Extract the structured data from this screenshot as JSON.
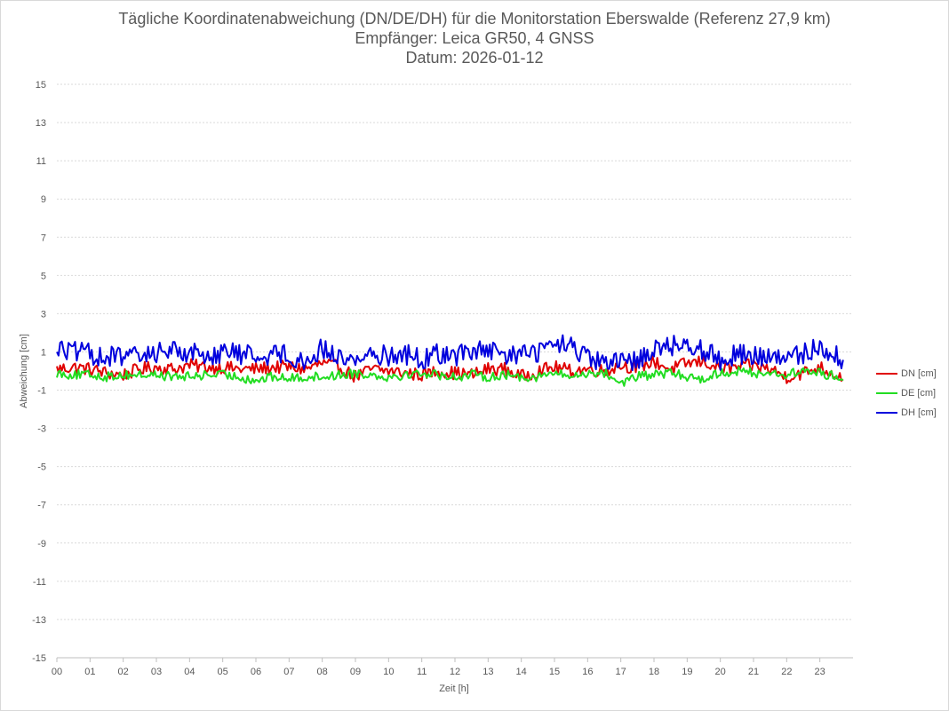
{
  "chart_data": {
    "type": "line",
    "title": "Tägliche Koordinatenabweichung (DN/DE/DH) für die Monitorstation Eberswalde (Referenz 27,9 km)",
    "subtitle_1": "Empfänger: Leica GR50, 4 GNSS",
    "subtitle_2": "Datum: 2026-01-12",
    "xlabel": "Zeit [h]",
    "ylabel": "Abweichung [cm]",
    "xlim": [
      0,
      24
    ],
    "ylim": [
      -15,
      15
    ],
    "x_ticks": [
      "00",
      "01",
      "02",
      "03",
      "04",
      "05",
      "06",
      "07",
      "08",
      "09",
      "10",
      "11",
      "12",
      "13",
      "14",
      "15",
      "16",
      "17",
      "18",
      "19",
      "20",
      "21",
      "22",
      "23"
    ],
    "y_ticks": [
      "15",
      "13",
      "11",
      "9",
      "7",
      "5",
      "3",
      "1",
      "-1",
      "-3",
      "-5",
      "-7",
      "-9",
      "-11",
      "-13",
      "-15"
    ],
    "grid": true,
    "legend_position": "right",
    "x_hours": [
      0,
      0.5,
      1,
      1.5,
      2,
      2.5,
      3,
      3.5,
      4,
      4.5,
      5,
      5.5,
      6,
      6.5,
      7,
      7.5,
      8,
      8.5,
      9,
      9.5,
      10,
      10.5,
      11,
      11.5,
      12,
      12.5,
      13,
      13.5,
      14,
      14.5,
      15,
      15.5,
      16,
      16.5,
      17,
      17.5,
      18,
      18.5,
      19,
      19.5,
      20,
      20.5,
      21,
      21.5,
      22,
      22.5,
      23,
      23.5
    ],
    "series": [
      {
        "name": "DN [cm]",
        "color": "#e00000",
        "values": [
          0.1,
          0.2,
          0.1,
          -0.1,
          -0.2,
          0.1,
          0.2,
          0.1,
          0.3,
          0.2,
          0.2,
          0.1,
          0.1,
          0.2,
          0.2,
          0.1,
          0.4,
          0.2,
          -0.3,
          0.1,
          0.0,
          -0.1,
          -0.2,
          0.0,
          -0.1,
          -0.2,
          0.1,
          0.1,
          -0.3,
          0.0,
          0.2,
          0.0,
          0.1,
          0.0,
          0.3,
          0.2,
          0.5,
          0.1,
          0.4,
          0.5,
          0.1,
          0.2,
          0.3,
          0.1,
          -0.3,
          -0.1,
          0.2,
          -0.2
        ]
      },
      {
        "name": "DE [cm]",
        "color": "#22dd22",
        "values": [
          -0.1,
          -0.2,
          -0.2,
          -0.3,
          -0.2,
          -0.2,
          -0.2,
          -0.3,
          -0.3,
          -0.2,
          -0.2,
          -0.3,
          -0.5,
          -0.3,
          -0.4,
          -0.3,
          -0.3,
          -0.2,
          -0.1,
          -0.2,
          -0.3,
          -0.2,
          -0.1,
          -0.2,
          -0.3,
          -0.2,
          -0.3,
          -0.2,
          -0.3,
          -0.3,
          -0.1,
          -0.3,
          -0.1,
          -0.1,
          -0.6,
          -0.3,
          -0.2,
          -0.1,
          -0.3,
          -0.4,
          -0.1,
          0.0,
          -0.1,
          -0.1,
          -0.2,
          0.0,
          -0.1,
          -0.3
        ]
      },
      {
        "name": "DH [cm]",
        "color": "#0000dd",
        "values": [
          1.2,
          1.0,
          0.9,
          0.7,
          0.8,
          0.7,
          1.0,
          1.1,
          1.0,
          0.8,
          1.0,
          0.9,
          0.8,
          0.9,
          0.9,
          0.4,
          1.2,
          0.7,
          0.6,
          0.9,
          0.8,
          0.9,
          0.6,
          0.9,
          0.8,
          1.1,
          1.0,
          0.8,
          0.9,
          1.0,
          1.4,
          1.3,
          0.6,
          0.4,
          0.4,
          0.6,
          1.2,
          1.3,
          1.5,
          1.1,
          0.6,
          0.9,
          0.8,
          0.7,
          0.6,
          0.9,
          1.3,
          0.8
        ]
      }
    ]
  }
}
